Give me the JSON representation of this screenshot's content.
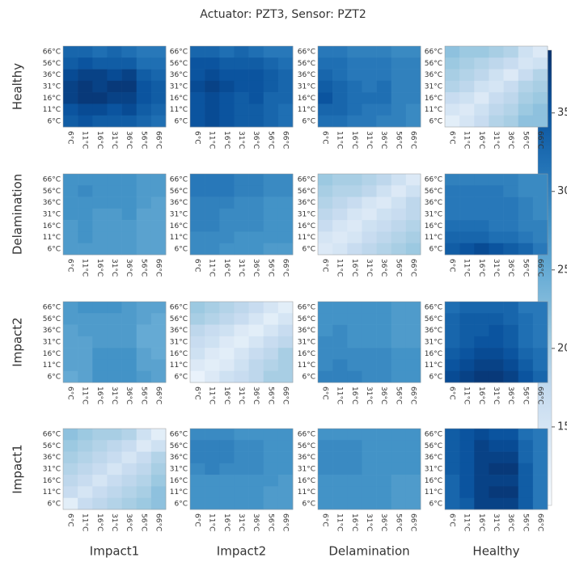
{
  "chart_data": {
    "type": "heatmap",
    "title": "Actuator: PZT3, Sensor: PZT2",
    "row_labels": [
      "Healthy",
      "Delamination",
      "Impact2",
      "Impact1"
    ],
    "col_labels": [
      "Impact1",
      "Impact2",
      "Delamination",
      "Healthy"
    ],
    "y_labels": [
      "66°C",
      "56°C",
      "36°C",
      "31°C",
      "16°C",
      "11°C",
      "6°C"
    ],
    "x_labels": [
      "6°C",
      "11°C",
      "16°C",
      "31°C",
      "36°C",
      "56°C",
      "66°C"
    ],
    "zlim": [
      10,
      39
    ],
    "zticks": [
      15,
      20,
      25,
      30,
      35
    ],
    "values": [
      [
        [
          [
            33,
            33,
            32,
            33,
            32,
            31,
            31
          ],
          [
            34,
            35,
            34,
            34,
            34,
            32,
            32
          ],
          [
            36,
            37,
            37,
            36,
            37,
            34,
            33
          ],
          [
            37,
            38,
            37,
            38,
            38,
            35,
            34
          ],
          [
            37,
            38,
            38,
            37,
            37,
            35,
            34
          ],
          [
            35,
            36,
            36,
            35,
            36,
            34,
            33
          ],
          [
            34,
            35,
            34,
            34,
            34,
            33,
            32
          ]
        ],
        [
          [
            33,
            33,
            32,
            33,
            32,
            31,
            31
          ],
          [
            35,
            35,
            34,
            34,
            34,
            33,
            32
          ],
          [
            35,
            36,
            35,
            35,
            35,
            34,
            33
          ],
          [
            36,
            37,
            36,
            35,
            35,
            34,
            33
          ],
          [
            35,
            36,
            35,
            34,
            35,
            33,
            33
          ],
          [
            35,
            36,
            35,
            34,
            34,
            33,
            32
          ],
          [
            35,
            36,
            35,
            34,
            34,
            33,
            32
          ]
        ],
        [
          [
            31,
            31,
            30,
            30,
            30,
            29,
            29
          ],
          [
            32,
            32,
            31,
            31,
            31,
            30,
            30
          ],
          [
            33,
            32,
            31,
            31,
            31,
            30,
            30
          ],
          [
            34,
            33,
            32,
            31,
            32,
            30,
            30
          ],
          [
            35,
            33,
            32,
            32,
            32,
            30,
            30
          ],
          [
            33,
            33,
            32,
            31,
            31,
            30,
            29
          ],
          [
            32,
            32,
            31,
            31,
            30,
            30,
            29
          ]
        ],
        [
          [
            22,
            21,
            21,
            20,
            19,
            16,
            14
          ],
          [
            21,
            20,
            19,
            18,
            17,
            15,
            16
          ],
          [
            20,
            19,
            18,
            16,
            14,
            17,
            19
          ],
          [
            19,
            18,
            16,
            15,
            17,
            19,
            20
          ],
          [
            17,
            16,
            14,
            17,
            18,
            20,
            21
          ],
          [
            15,
            14,
            16,
            18,
            19,
            21,
            22
          ],
          [
            13,
            15,
            17,
            19,
            20,
            22,
            22
          ]
        ]
      ],
      [
        [
          [
            28,
            28,
            28,
            28,
            28,
            27,
            27
          ],
          [
            28,
            29,
            28,
            28,
            28,
            27,
            27
          ],
          [
            28,
            28,
            28,
            28,
            28,
            27,
            26
          ],
          [
            28,
            28,
            27,
            27,
            28,
            26,
            26
          ],
          [
            27,
            28,
            27,
            27,
            27,
            26,
            26
          ],
          [
            27,
            28,
            27,
            27,
            27,
            26,
            26
          ],
          [
            27,
            27,
            27,
            27,
            27,
            26,
            26
          ]
        ],
        [
          [
            31,
            31,
            31,
            30,
            30,
            29,
            29
          ],
          [
            31,
            31,
            31,
            30,
            30,
            29,
            29
          ],
          [
            30,
            30,
            30,
            29,
            29,
            28,
            28
          ],
          [
            30,
            30,
            29,
            29,
            29,
            28,
            28
          ],
          [
            30,
            30,
            29,
            29,
            29,
            28,
            28
          ],
          [
            29,
            29,
            29,
            28,
            28,
            28,
            28
          ],
          [
            29,
            29,
            28,
            28,
            28,
            27,
            27
          ]
        ],
        [
          [
            21,
            20,
            20,
            19,
            18,
            16,
            14
          ],
          [
            20,
            19,
            19,
            18,
            16,
            14,
            16
          ],
          [
            19,
            18,
            17,
            15,
            14,
            16,
            18
          ],
          [
            18,
            17,
            15,
            14,
            16,
            17,
            18
          ],
          [
            17,
            15,
            14,
            16,
            17,
            18,
            19
          ],
          [
            15,
            14,
            15,
            17,
            18,
            19,
            20
          ],
          [
            14,
            15,
            17,
            18,
            19,
            20,
            21
          ]
        ],
        [
          [
            30,
            30,
            30,
            30,
            30,
            29,
            29
          ],
          [
            31,
            31,
            31,
            31,
            30,
            29,
            29
          ],
          [
            31,
            31,
            31,
            31,
            31,
            30,
            29
          ],
          [
            31,
            31,
            31,
            31,
            31,
            30,
            29
          ],
          [
            32,
            32,
            32,
            31,
            31,
            30,
            30
          ],
          [
            33,
            33,
            33,
            32,
            32,
            31,
            30
          ],
          [
            34,
            35,
            36,
            35,
            34,
            33,
            31
          ]
        ]
      ],
      [
        [
          [
            27,
            28,
            28,
            28,
            27,
            26,
            26
          ],
          [
            27,
            27,
            27,
            27,
            27,
            26,
            25
          ],
          [
            26,
            27,
            27,
            27,
            27,
            25,
            25
          ],
          [
            26,
            26,
            27,
            27,
            27,
            25,
            25
          ],
          [
            26,
            26,
            28,
            28,
            28,
            26,
            25
          ],
          [
            26,
            26,
            28,
            28,
            28,
            26,
            26
          ],
          [
            25,
            26,
            28,
            28,
            28,
            27,
            26
          ]
        ],
        [
          [
            21,
            20,
            19,
            18,
            17,
            15,
            13
          ],
          [
            20,
            19,
            18,
            17,
            15,
            13,
            15
          ],
          [
            18,
            17,
            16,
            14,
            13,
            15,
            17
          ],
          [
            17,
            16,
            14,
            13,
            15,
            17,
            18
          ],
          [
            16,
            14,
            13,
            15,
            17,
            18,
            20
          ],
          [
            14,
            13,
            14,
            16,
            18,
            19,
            20
          ],
          [
            12,
            14,
            16,
            17,
            18,
            20,
            20
          ]
        ],
        [
          [
            28,
            28,
            28,
            28,
            28,
            27,
            27
          ],
          [
            28,
            28,
            28,
            28,
            28,
            27,
            27
          ],
          [
            28,
            29,
            28,
            28,
            28,
            27,
            27
          ],
          [
            29,
            29,
            28,
            28,
            28,
            27,
            27
          ],
          [
            29,
            29,
            29,
            29,
            29,
            28,
            28
          ],
          [
            29,
            30,
            29,
            29,
            29,
            28,
            28
          ],
          [
            30,
            30,
            30,
            29,
            29,
            28,
            28
          ]
        ],
        [
          [
            32,
            33,
            33,
            33,
            33,
            31,
            31
          ],
          [
            33,
            34,
            34,
            34,
            33,
            32,
            31
          ],
          [
            33,
            34,
            34,
            35,
            34,
            32,
            31
          ],
          [
            33,
            34,
            35,
            35,
            34,
            32,
            31
          ],
          [
            34,
            35,
            36,
            36,
            35,
            33,
            32
          ],
          [
            35,
            36,
            37,
            37,
            36,
            34,
            32
          ],
          [
            36,
            37,
            38,
            38,
            37,
            35,
            33
          ]
        ]
      ],
      [
        [
          [
            22,
            21,
            20,
            20,
            19,
            16,
            13
          ],
          [
            21,
            20,
            19,
            18,
            17,
            14,
            16
          ],
          [
            20,
            19,
            18,
            17,
            15,
            17,
            19
          ],
          [
            19,
            18,
            17,
            15,
            17,
            18,
            20
          ],
          [
            18,
            17,
            15,
            17,
            18,
            19,
            21
          ],
          [
            17,
            15,
            17,
            18,
            19,
            20,
            22
          ],
          [
            13,
            17,
            18,
            19,
            20,
            21,
            22
          ]
        ],
        [
          [
            29,
            29,
            29,
            28,
            28,
            28,
            28
          ],
          [
            30,
            30,
            30,
            29,
            29,
            28,
            28
          ],
          [
            30,
            30,
            30,
            29,
            29,
            28,
            28
          ],
          [
            29,
            30,
            29,
            29,
            29,
            28,
            28
          ],
          [
            28,
            28,
            28,
            28,
            28,
            28,
            27
          ],
          [
            28,
            28,
            28,
            28,
            28,
            27,
            27
          ],
          [
            28,
            28,
            28,
            28,
            28,
            27,
            27
          ]
        ],
        [
          [
            28,
            28,
            28,
            28,
            28,
            28,
            28
          ],
          [
            29,
            29,
            29,
            28,
            28,
            28,
            28
          ],
          [
            29,
            29,
            29,
            28,
            28,
            28,
            28
          ],
          [
            29,
            29,
            29,
            28,
            28,
            28,
            28
          ],
          [
            28,
            28,
            28,
            28,
            28,
            27,
            27
          ],
          [
            28,
            28,
            28,
            28,
            28,
            27,
            27
          ],
          [
            28,
            28,
            28,
            28,
            28,
            27,
            27
          ]
        ],
        [
          [
            34,
            35,
            36,
            35,
            35,
            32,
            31
          ],
          [
            34,
            35,
            37,
            36,
            36,
            33,
            31
          ],
          [
            34,
            35,
            37,
            37,
            37,
            33,
            31
          ],
          [
            34,
            35,
            37,
            38,
            38,
            34,
            31
          ],
          [
            33,
            35,
            37,
            37,
            37,
            34,
            31
          ],
          [
            33,
            35,
            37,
            38,
            38,
            34,
            31
          ],
          [
            33,
            34,
            37,
            37,
            37,
            34,
            31
          ]
        ]
      ]
    ]
  }
}
